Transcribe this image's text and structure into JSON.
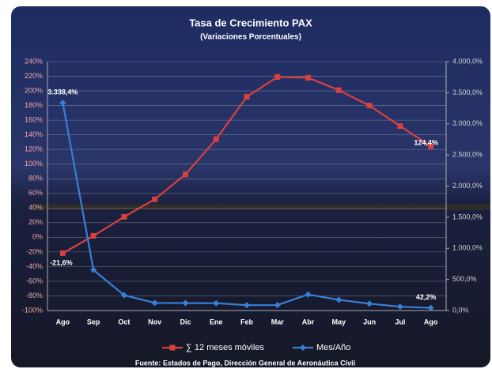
{
  "chart_data": {
    "type": "line",
    "title": "Tasa de Crecimiento PAX",
    "subtitle": "(Variaciones Porcentuales)",
    "note": "Fuente: Estados de Pago, Dirección General de Aeronáutica Civil",
    "categories": [
      "Ago",
      "Sep",
      "Oct",
      "Nov",
      "Dic",
      "Ene",
      "Feb",
      "Mar",
      "Abr",
      "May",
      "Jun",
      "Jul",
      "Ago"
    ],
    "series": [
      {
        "name": "∑ 12 meses móviles",
        "color": "#d94040",
        "marker": "square",
        "values": [
          -21.6,
          2,
          28,
          52,
          86,
          134,
          192,
          219,
          218,
          201,
          180,
          152,
          124.4
        ],
        "value_labels": [
          "-21,6%",
          null,
          null,
          null,
          null,
          null,
          null,
          null,
          null,
          null,
          null,
          null,
          "124,4%"
        ]
      },
      {
        "name": "Mes/Año",
        "color": "#3a7fd5",
        "marker": "diamond",
        "axis": "y2",
        "values": [
          3338.4,
          652,
          246,
          123,
          120,
          118,
          86,
          88,
          258,
          172,
          110,
          62,
          42.2
        ],
        "value_labels": [
          "3.338,4%",
          null,
          null,
          null,
          null,
          null,
          null,
          null,
          null,
          null,
          null,
          null,
          "42,2%"
        ]
      }
    ],
    "ylim": [
      -100,
      240
    ],
    "yticks": [
      {
        "value": -100,
        "label": "-100%"
      },
      {
        "value": -80,
        "label": "-80%"
      },
      {
        "value": -60,
        "label": "-60%"
      },
      {
        "value": -40,
        "label": "-40%"
      },
      {
        "value": -20,
        "label": "-20%"
      },
      {
        "value": 0,
        "label": "0%"
      },
      {
        "value": 20,
        "label": "20%"
      },
      {
        "value": 40,
        "label": "40%"
      },
      {
        "value": 60,
        "label": "60%"
      },
      {
        "value": 80,
        "label": "80%"
      },
      {
        "value": 100,
        "label": "100%"
      },
      {
        "value": 120,
        "label": "120%"
      },
      {
        "value": 140,
        "label": "140%"
      },
      {
        "value": 160,
        "label": "160%"
      },
      {
        "value": 180,
        "label": "180%"
      },
      {
        "value": 200,
        "label": "200%"
      },
      {
        "value": 220,
        "label": "220%"
      },
      {
        "value": 240,
        "label": "240%"
      }
    ],
    "y2lim": [
      0,
      4000
    ],
    "y2ticks": [
      {
        "value": 0,
        "label": "0,0%"
      },
      {
        "value": 500,
        "label": "500,0%"
      },
      {
        "value": 1000,
        "label": "1.000,0%"
      },
      {
        "value": 1500,
        "label": "1.500,0%"
      },
      {
        "value": 2000,
        "label": "2.000,0%"
      },
      {
        "value": 2500,
        "label": "2.500,0%"
      },
      {
        "value": 3000,
        "label": "3.000,0%"
      },
      {
        "value": 3500,
        "label": "3.500,0%"
      },
      {
        "value": 4000,
        "label": "4.000,0%"
      }
    ],
    "grid": true,
    "legend": "bottom"
  }
}
